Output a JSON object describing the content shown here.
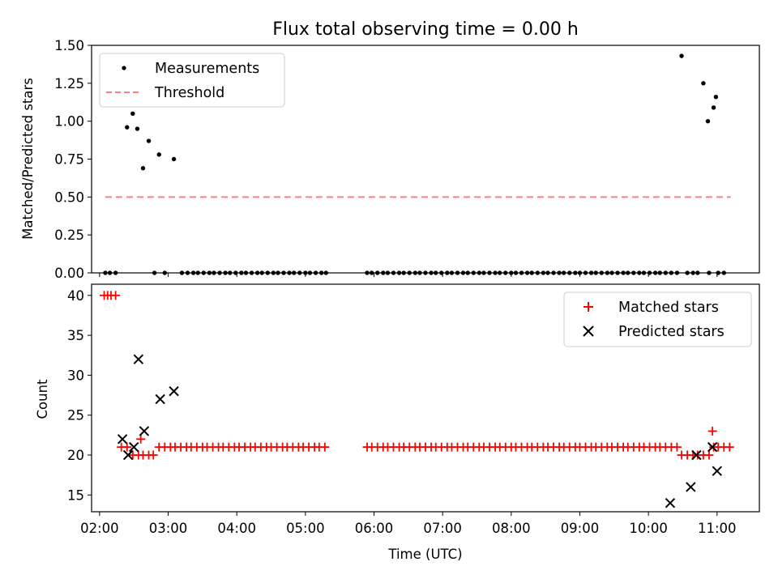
{
  "chart_data": [
    {
      "type": "scatter",
      "title": "Flux total observing time = 0.00 h",
      "xlabel": "",
      "ylabel": "Matched/Predicted stars",
      "ylim": [
        0,
        1.5
      ],
      "xlim": [
        "01:53",
        "11:37"
      ],
      "yticks": [
        "0.00",
        "0.25",
        "0.50",
        "0.75",
        "1.00",
        "1.25",
        "1.50"
      ],
      "grid": false,
      "legend_position": "upper-left",
      "series": [
        {
          "name": "Measurements",
          "style": "dot",
          "color": "#000000",
          "x": [
            "02:24",
            "02:29",
            "02:33",
            "02:38",
            "02:43",
            "02:52",
            "03:05",
            "02:05",
            "02:09",
            "02:14",
            "02:48",
            "02:57",
            "03:12",
            "03:17",
            "03:22",
            "03:26",
            "03:31",
            "03:36",
            "03:40",
            "03:45",
            "03:50",
            "03:54",
            "03:59",
            "04:04",
            "04:08",
            "04:13",
            "04:18",
            "04:22",
            "04:27",
            "04:32",
            "04:36",
            "04:41",
            "04:46",
            "04:50",
            "04:55",
            "05:00",
            "05:04",
            "05:09",
            "05:14",
            "05:18",
            "05:54",
            "05:58",
            "06:03",
            "06:08",
            "06:12",
            "06:17",
            "06:22",
            "06:26",
            "06:31",
            "06:36",
            "06:40",
            "06:45",
            "06:50",
            "06:54",
            "06:59",
            "07:04",
            "07:08",
            "07:13",
            "07:18",
            "07:22",
            "07:27",
            "07:32",
            "07:36",
            "07:41",
            "07:46",
            "07:50",
            "07:55",
            "08:00",
            "08:04",
            "08:09",
            "08:14",
            "08:18",
            "08:23",
            "08:28",
            "08:32",
            "08:37",
            "08:42",
            "08:46",
            "08:51",
            "08:56",
            "09:00",
            "09:05",
            "09:10",
            "09:14",
            "09:19",
            "09:24",
            "09:28",
            "09:33",
            "09:38",
            "09:42",
            "09:47",
            "09:52",
            "09:56",
            "10:01",
            "10:06",
            "10:10",
            "10:15",
            "10:20",
            "10:25",
            "10:34",
            "10:39",
            "10:43",
            "10:53",
            "11:01",
            "11:06",
            "10:29",
            "10:48",
            "10:52",
            "10:57",
            "10:59"
          ],
          "y": [
            0.96,
            1.05,
            0.95,
            0.69,
            0.87,
            0.78,
            0.75,
            0,
            0,
            0,
            0,
            0,
            0,
            0,
            0,
            0,
            0,
            0,
            0,
            0,
            0,
            0,
            0,
            0,
            0,
            0,
            0,
            0,
            0,
            0,
            0,
            0,
            0,
            0,
            0,
            0,
            0,
            0,
            0,
            0,
            0,
            0,
            0,
            0,
            0,
            0,
            0,
            0,
            0,
            0,
            0,
            0,
            0,
            0,
            0,
            0,
            0,
            0,
            0,
            0,
            0,
            0,
            0,
            0,
            0,
            0,
            0,
            0,
            0,
            0,
            0,
            0,
            0,
            0,
            0,
            0,
            0,
            0,
            0,
            0,
            0,
            0,
            0,
            0,
            0,
            0,
            0,
            0,
            0,
            0,
            0,
            0,
            0,
            0,
            0,
            0,
            0,
            0,
            0,
            0,
            0,
            0,
            0,
            0,
            0,
            1.43,
            1.25,
            1.0,
            1.09,
            1.16
          ]
        },
        {
          "name": "Threshold",
          "style": "dashed-line",
          "color": "#ff7f7f",
          "x": [
            "02:05",
            "11:12"
          ],
          "y": [
            0.5,
            0.5
          ]
        }
      ]
    },
    {
      "type": "scatter",
      "title": "",
      "xlabel": "Time (UTC)",
      "ylabel": "Count",
      "ylim": [
        12.9,
        41.4
      ],
      "yticks": [
        "15",
        "20",
        "25",
        "30",
        "35",
        "40"
      ],
      "xticks": [
        "02:00",
        "03:00",
        "04:00",
        "05:00",
        "06:00",
        "07:00",
        "08:00",
        "09:00",
        "10:00",
        "11:00"
      ],
      "grid": false,
      "legend_position": "upper-right",
      "series": [
        {
          "name": "Matched stars",
          "marker": "+",
          "color": "#ff0000",
          "x": [
            "02:04",
            "02:07",
            "02:10",
            "02:14",
            "02:19",
            "02:24",
            "02:29",
            "02:34",
            "02:38",
            "02:43",
            "02:47",
            "02:52",
            "02:57",
            "03:02",
            "03:06",
            "03:11",
            "03:16",
            "03:20",
            "03:25",
            "03:30",
            "03:34",
            "03:39",
            "03:44",
            "03:48",
            "03:53",
            "03:58",
            "04:02",
            "04:07",
            "04:12",
            "04:16",
            "04:21",
            "04:26",
            "04:30",
            "04:35",
            "04:40",
            "04:44",
            "04:49",
            "04:54",
            "04:58",
            "05:03",
            "05:08",
            "05:12",
            "05:17",
            "05:54",
            "05:58",
            "06:03",
            "06:08",
            "06:12",
            "06:17",
            "06:22",
            "06:26",
            "06:31",
            "06:36",
            "06:40",
            "06:45",
            "06:50",
            "06:54",
            "06:59",
            "07:04",
            "07:08",
            "07:13",
            "07:18",
            "07:22",
            "07:27",
            "07:32",
            "07:36",
            "07:41",
            "07:46",
            "07:50",
            "07:55",
            "08:00",
            "08:04",
            "08:09",
            "08:14",
            "08:18",
            "08:23",
            "08:28",
            "08:32",
            "08:37",
            "08:42",
            "08:46",
            "08:51",
            "08:56",
            "09:00",
            "09:05",
            "09:10",
            "09:14",
            "09:19",
            "09:24",
            "09:28",
            "09:33",
            "09:38",
            "09:42",
            "09:47",
            "09:52",
            "09:56",
            "10:01",
            "10:06",
            "10:10",
            "10:15",
            "10:20",
            "10:25",
            "10:29",
            "10:34",
            "10:39",
            "10:43",
            "10:48",
            "10:53",
            "10:57",
            "11:01",
            "11:06",
            "11:11",
            "02:36",
            "10:56"
          ],
          "y": [
            40,
            40,
            40,
            40,
            21,
            21,
            20,
            20,
            20,
            20,
            20,
            21,
            21,
            21,
            21,
            21,
            21,
            21,
            21,
            21,
            21,
            21,
            21,
            21,
            21,
            21,
            21,
            21,
            21,
            21,
            21,
            21,
            21,
            21,
            21,
            21,
            21,
            21,
            21,
            21,
            21,
            21,
            21,
            21,
            21,
            21,
            21,
            21,
            21,
            21,
            21,
            21,
            21,
            21,
            21,
            21,
            21,
            21,
            21,
            21,
            21,
            21,
            21,
            21,
            21,
            21,
            21,
            21,
            21,
            21,
            21,
            21,
            21,
            21,
            21,
            21,
            21,
            21,
            21,
            21,
            21,
            21,
            21,
            21,
            21,
            21,
            21,
            21,
            21,
            21,
            21,
            21,
            21,
            21,
            21,
            21,
            21,
            21,
            21,
            21,
            21,
            21,
            20,
            20,
            20,
            20,
            20,
            20,
            21,
            21,
            21,
            21,
            22,
            23
          ]
        },
        {
          "name": "Predicted stars",
          "marker": "x",
          "color": "#000000",
          "x": [
            "02:20",
            "02:25",
            "02:30",
            "02:34",
            "02:39",
            "02:53",
            "03:05",
            "10:19",
            "10:37",
            "10:42",
            "10:56",
            "11:00"
          ],
          "y": [
            22,
            20,
            21,
            32,
            23,
            27,
            28,
            14,
            16,
            20,
            21,
            18
          ]
        }
      ]
    }
  ]
}
